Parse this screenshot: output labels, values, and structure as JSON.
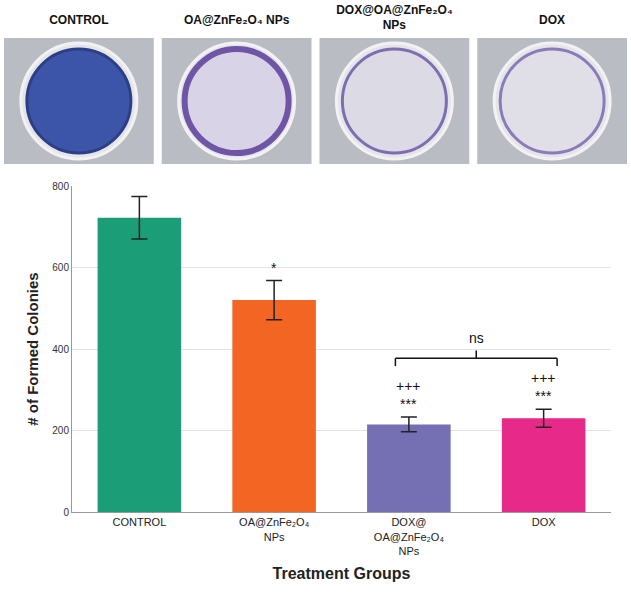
{
  "photo_labels": [
    "CONTROL",
    "OA@ZnFe₂O₄ NPs",
    "DOX@OA@ZnFe₂O₄ NPs",
    "DOX"
  ],
  "chart_data": {
    "type": "bar",
    "categories": [
      "CONTROL",
      "OA@ZnFe₂O₄ NPs",
      "DOX@OA@ZnFe₂O₄ NPs",
      "DOX"
    ],
    "values": [
      722,
      520,
      215,
      230
    ],
    "errors": [
      52,
      48,
      18,
      22
    ],
    "colors": [
      "#1b9e77",
      "#f26522",
      "#7570b3",
      "#e7298a"
    ],
    "x_label": "Treatment Groups",
    "y_label": "# of Formed Colonies",
    "ylim": [
      0,
      800
    ],
    "yticks": [
      0,
      200,
      400,
      600,
      800
    ],
    "grid": true,
    "annotations": [
      {
        "category": "OA@ZnFe₂O₄ NPs",
        "lines": [
          "*"
        ]
      },
      {
        "category": "DOX@OA@ZnFe₂O₄ NPs",
        "lines": [
          "+++",
          "***"
        ]
      },
      {
        "category": "DOX",
        "lines": [
          "+++",
          "***"
        ]
      }
    ],
    "brackets": [
      {
        "categories": [
          "DOX@OA@ZnFe₂O₄ NPs",
          "DOX"
        ],
        "text": "ns"
      }
    ]
  }
}
